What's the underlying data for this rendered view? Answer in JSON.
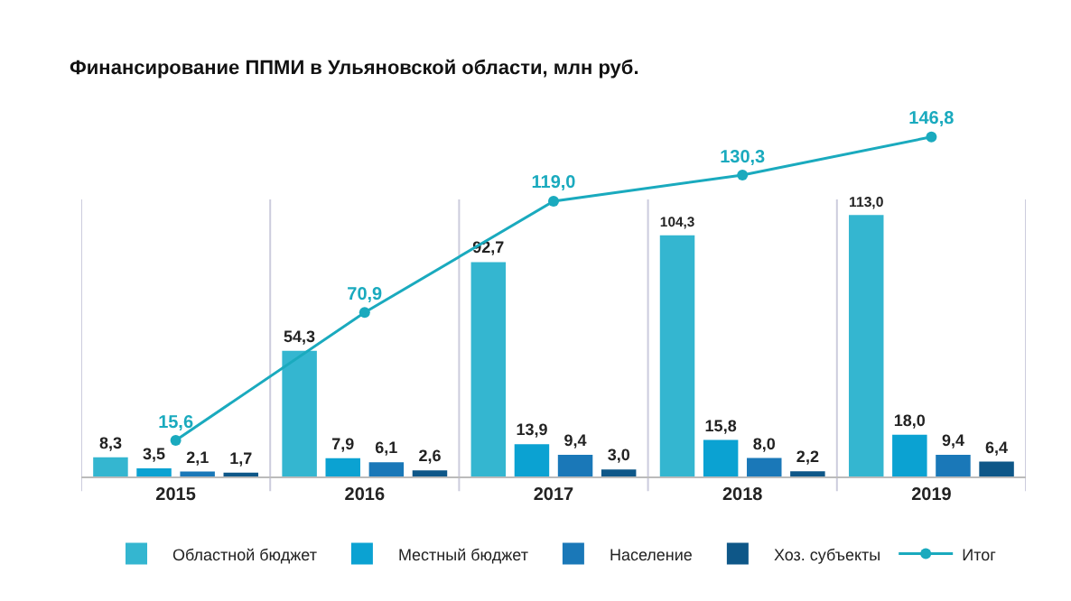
{
  "chart_data": {
    "type": "bar",
    "title": "Финансирование ППМИ в Ульяновской области, млн руб.",
    "categories": [
      "2015",
      "2016",
      "2017",
      "2018",
      "2019"
    ],
    "series": [
      {
        "name": "Областной бюджет",
        "color": "#34b6d0",
        "values": [
          8.3,
          54.3,
          92.7,
          104.3,
          113.0
        ],
        "value_labels": [
          "8,3",
          "54,3",
          "92,7",
          "104,3",
          "113,0"
        ]
      },
      {
        "name": "Местный бюджет",
        "color": "#0ba2d2",
        "values": [
          3.5,
          7.9,
          13.9,
          15.8,
          18.0
        ],
        "value_labels": [
          "3,5",
          "7,9",
          "13,9",
          "15,8",
          "18,0"
        ]
      },
      {
        "name": "Население",
        "color": "#1a78b8",
        "values": [
          2.1,
          6.1,
          9.4,
          8.0,
          9.4
        ],
        "value_labels": [
          "2,1",
          "6,1",
          "9,4",
          "8,0",
          "9,4"
        ]
      },
      {
        "name": "Хоз. субъекты",
        "color": "#0e5788",
        "values": [
          1.7,
          2.6,
          3.0,
          2.2,
          6.4
        ],
        "value_labels": [
          "1,7",
          "2,6",
          "3,0",
          "2,2",
          "6,4"
        ]
      },
      {
        "name": "Итог",
        "type": "line",
        "color": "#1aaabe",
        "values": [
          15.6,
          70.9,
          119.0,
          130.3,
          146.8
        ],
        "value_labels": [
          "15,6",
          "70,9",
          "119,0",
          "130,3",
          "146,8"
        ]
      }
    ],
    "grid": "x",
    "legend": "bottom",
    "marker": "circle",
    "line_style": "solid",
    "tick_labels": "x"
  }
}
